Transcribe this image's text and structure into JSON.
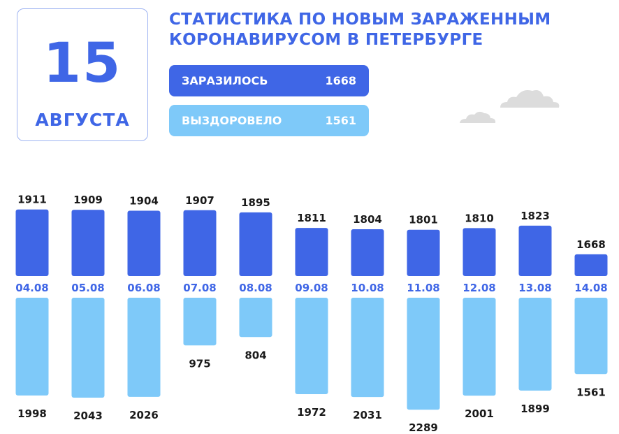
{
  "date": {
    "day": "15",
    "month": "АВГУСТА"
  },
  "title": {
    "line1": "СТАТИСТИКА ПО НОВЫМ ЗАРАЖЕННЫМ",
    "line2": "КОРОНАВИРУСОМ В ПЕТЕРБУРГЕ"
  },
  "summary": {
    "infected_label": "ЗАРАЗИЛОСЬ",
    "infected_value": "1668",
    "recovered_label": "ВЫЗДОРОВЕЛО",
    "recovered_value": "1561"
  },
  "colors": {
    "accent": "#3f66e6",
    "infected": "#3f66e6",
    "recovered": "#7ec9f9",
    "text_dark": "#1a1a1a",
    "cloud": "#dcdcdc"
  },
  "icons": [
    "cloud-icon",
    "cloud-icon"
  ],
  "chart_data": {
    "type": "bar",
    "categories": [
      "04.08",
      "05.08",
      "06.08",
      "07.08",
      "08.08",
      "09.08",
      "10.08",
      "11.08",
      "12.08",
      "13.08",
      "14.08"
    ],
    "series": [
      {
        "values": [
          1911,
          1909,
          1904,
          1907,
          1895,
          1811,
          1804,
          1801,
          1810,
          1823,
          1668
        ]
      },
      {
        "values": [
          1998,
          2043,
          2026,
          975,
          804,
          1972,
          2031,
          2289,
          2001,
          1899,
          1561
        ]
      }
    ],
    "layout_note": "Upper bars (infected) grow upward from the date row; lower bars (recovered) grow downward.",
    "grid": false,
    "legend": "none"
  }
}
